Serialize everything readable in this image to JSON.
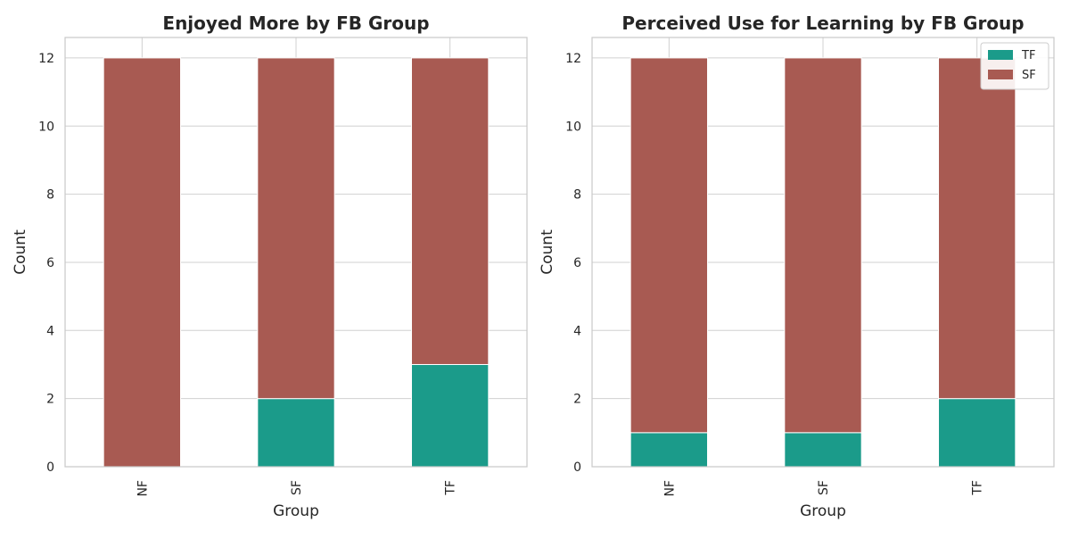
{
  "colors": {
    "TF": "#1b9b8a",
    "SF": "#a85a52",
    "grid": "#d0d0d0",
    "frame": "#c8c8c8",
    "legend_border": "#cccccc"
  },
  "chart_data": [
    {
      "type": "bar",
      "stacked": true,
      "title": "Enjoyed More by FB Group",
      "xlabel": "Group",
      "ylabel": "Count",
      "categories": [
        "NF",
        "SF",
        "TF"
      ],
      "series": [
        {
          "name": "TF",
          "values": [
            0,
            2,
            3
          ]
        },
        {
          "name": "SF",
          "values": [
            12,
            10,
            9
          ]
        }
      ],
      "ylim": [
        0,
        12.6
      ],
      "yticks": [
        0,
        2,
        4,
        6,
        8,
        10,
        12
      ],
      "grid": true,
      "legend": null
    },
    {
      "type": "bar",
      "stacked": true,
      "title": "Perceived Use for Learning by FB Group",
      "xlabel": "Group",
      "ylabel": "Count",
      "categories": [
        "NF",
        "SF",
        "TF"
      ],
      "series": [
        {
          "name": "TF",
          "values": [
            1,
            1,
            2
          ]
        },
        {
          "name": "SF",
          "values": [
            11,
            11,
            10
          ]
        }
      ],
      "ylim": [
        0,
        12.6
      ],
      "yticks": [
        0,
        2,
        4,
        6,
        8,
        10,
        12
      ],
      "grid": true,
      "legend": "top-right"
    }
  ]
}
